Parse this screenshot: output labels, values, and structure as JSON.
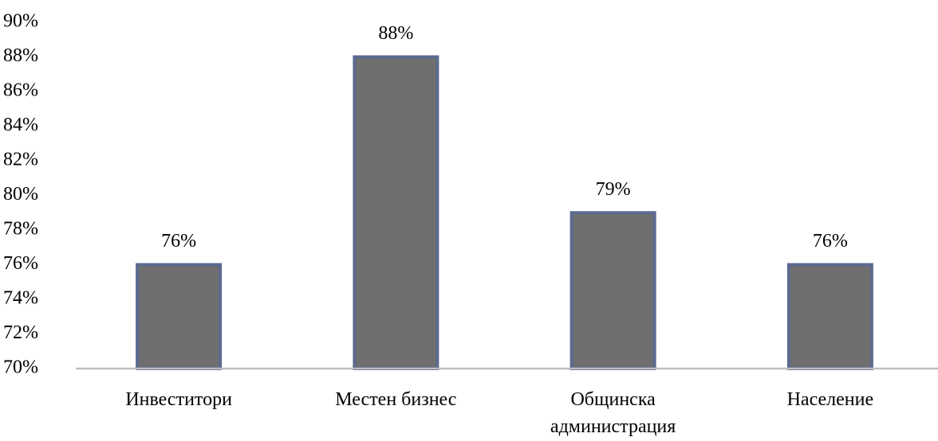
{
  "chart_data": {
    "type": "bar",
    "categories": [
      "Инвеститори",
      "Местен бизнес",
      "Общинска администрация",
      "Население"
    ],
    "values": [
      76,
      88,
      79,
      76
    ],
    "value_labels": [
      "76%",
      "88%",
      "79%",
      "76%"
    ],
    "color": "#6f6f6f",
    "edge_color": "#5b6a8f",
    "ylim": [
      70,
      90
    ],
    "yticks": [
      {
        "value": 70,
        "label": "70%"
      },
      {
        "value": 72,
        "label": "72%"
      },
      {
        "value": 74,
        "label": "74%"
      },
      {
        "value": 76,
        "label": "76%"
      },
      {
        "value": 78,
        "label": "78%"
      },
      {
        "value": 80,
        "label": "80%"
      },
      {
        "value": 82,
        "label": "82%"
      },
      {
        "value": 84,
        "label": "84%"
      },
      {
        "value": 86,
        "label": "86%"
      },
      {
        "value": 88,
        "label": "88%"
      },
      {
        "value": 90,
        "label": "90%"
      }
    ],
    "grid": false
  }
}
